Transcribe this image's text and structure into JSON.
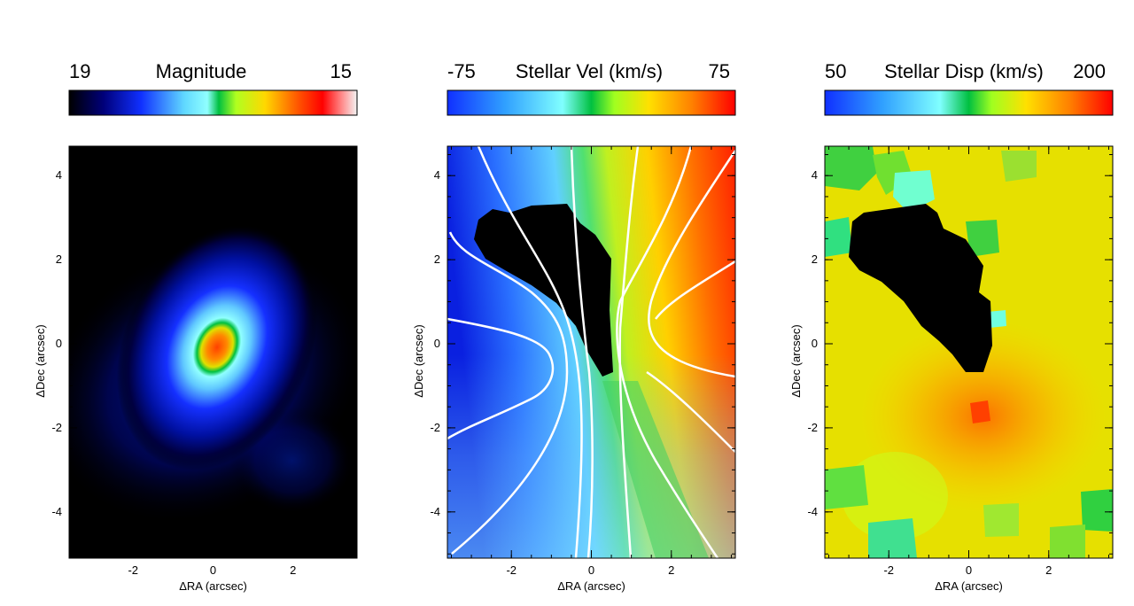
{
  "chart_data": [
    {
      "type": "heatmap",
      "colorbar": {
        "label": "Magnitude",
        "min_label": "19",
        "max_label": "15",
        "range": [
          19,
          15
        ]
      },
      "xlabel": "ΔRA (arcsec)",
      "ylabel": "ΔDec (arcsec)",
      "xlim": [
        -3.6,
        3.6
      ],
      "ylim": [
        -5.1,
        4.7
      ],
      "xticks": [
        -2,
        0,
        2
      ],
      "yticks": [
        -4,
        -2,
        0,
        2,
        4
      ],
      "xtick_labels": [
        "-2",
        "0",
        "2"
      ],
      "ytick_labels": [
        "-4",
        "-2",
        "0",
        "2",
        "4"
      ],
      "peak": {
        "x": 0.2,
        "y": -0.2,
        "value": 15.3
      }
    },
    {
      "type": "heatmap",
      "colorbar": {
        "label": "Stellar Vel (km/s)",
        "min_label": "-75",
        "max_label": "75",
        "range": [
          -75,
          75
        ]
      },
      "xlabel": "ΔRA (arcsec)",
      "ylabel": "ΔDec (arcsec)",
      "xlim": [
        -3.6,
        3.6
      ],
      "ylim": [
        -5.1,
        4.7
      ],
      "xticks": [
        -2,
        0,
        2
      ],
      "yticks": [
        -4,
        -2,
        0,
        2,
        4
      ],
      "xtick_labels": [
        "-2",
        "0",
        "2"
      ],
      "ytick_labels": [
        "-4",
        "-2",
        "0",
        "2",
        "4"
      ],
      "contours": true,
      "masked_region": true
    },
    {
      "type": "heatmap",
      "colorbar": {
        "label": "Stellar Disp (km/s)",
        "min_label": "50",
        "max_label": "200",
        "range": [
          50,
          200
        ]
      },
      "xlabel": "ΔRA (arcsec)",
      "ylabel": "ΔDec (arcsec)",
      "xlim": [
        -3.6,
        3.6
      ],
      "ylim": [
        -5.1,
        4.7
      ],
      "xticks": [
        -2,
        0,
        2
      ],
      "yticks": [
        -4,
        -2,
        0,
        2,
        4
      ],
      "xtick_labels": [
        "-2",
        "0",
        "2"
      ],
      "ytick_labels": [
        "-4",
        "-2",
        "0",
        "2",
        "4"
      ],
      "masked_region": true
    }
  ]
}
